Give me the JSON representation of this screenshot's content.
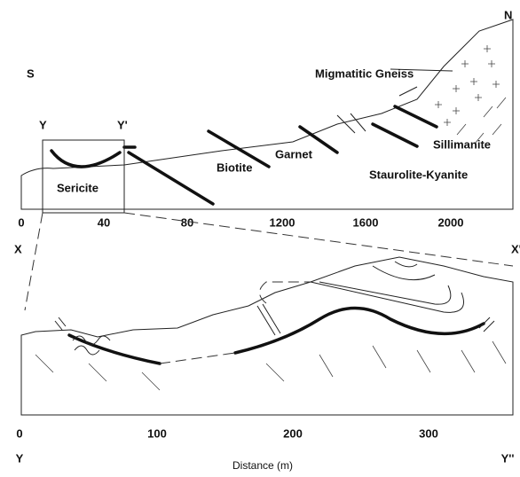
{
  "upper": {
    "ends": [
      "S",
      "N"
    ],
    "box_labels": [
      "Y",
      "Y'"
    ],
    "zones": [
      "Sericite",
      "Biotite",
      "Garnet",
      "Staurolite-Kyanite",
      "Sillimanite",
      "Migmatitic Gneiss"
    ],
    "ticks": [
      0,
      40,
      80,
      1200,
      1600,
      2000
    ]
  },
  "lower": {
    "ends_top": [
      "X",
      "X'"
    ],
    "ends_bottom": [
      "Y",
      "Y''"
    ],
    "ticks": [
      0,
      100,
      200,
      300
    ],
    "axis_label": "Distance (m)"
  }
}
